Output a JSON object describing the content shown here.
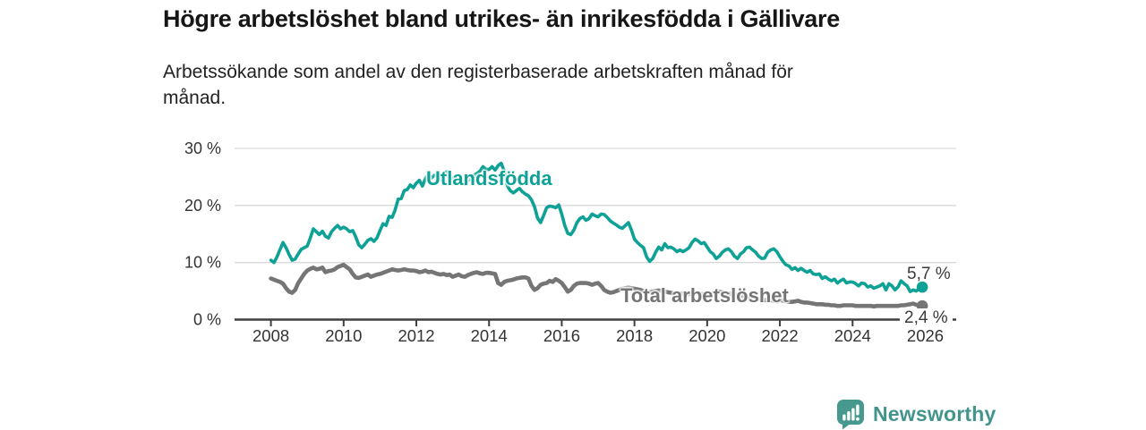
{
  "chart_data": {
    "type": "line",
    "title": "Högre arbetslöshet bland utrikes- än inrikesfödda i Gällivare",
    "subtitle": "Arbetssökande som andel av den registerbaserade arbetskraften månad för månad.",
    "xlabel": "",
    "ylabel": "",
    "xlim": [
      2007.0,
      2026.85
    ],
    "ylim": [
      0,
      30
    ],
    "grid": true,
    "legend_position": "inline-labels",
    "x_start_year": 2008,
    "x_step_months": 1,
    "x_ticks": [
      {
        "year": 2008,
        "label": "2008"
      },
      {
        "year": 2010,
        "label": "2010"
      },
      {
        "year": 2012,
        "label": "2012"
      },
      {
        "year": 2014,
        "label": "2014"
      },
      {
        "year": 2016,
        "label": "2016"
      },
      {
        "year": 2018,
        "label": "2018"
      },
      {
        "year": 2020,
        "label": "2020"
      },
      {
        "year": 2022,
        "label": "2022"
      },
      {
        "year": 2024,
        "label": "2024"
      },
      {
        "year": 2026,
        "label": "2026"
      }
    ],
    "y_ticks": [
      {
        "value": 0,
        "label": "0 %"
      },
      {
        "value": 10,
        "label": "10 %"
      },
      {
        "value": 20,
        "label": "20 %"
      },
      {
        "value": 30,
        "label": "30 %"
      }
    ],
    "series": [
      {
        "name": "Utlandsfödda",
        "color": "#0ea195",
        "end_label": "5,7 %",
        "end_value": 5.7,
        "values": [
          10.4,
          10.0,
          11.0,
          12.3,
          13.5,
          12.6,
          11.4,
          10.4,
          10.6,
          11.5,
          12.3,
          12.6,
          12.9,
          14.3,
          15.9,
          15.4,
          14.9,
          15.5,
          14.6,
          14.3,
          15.4,
          16.0,
          16.5,
          15.9,
          16.2,
          15.9,
          15.4,
          15.6,
          14.5,
          13.1,
          12.6,
          13.2,
          13.9,
          14.2,
          13.7,
          14.3,
          15.6,
          16.8,
          16.5,
          18.1,
          17.9,
          19.2,
          21.1,
          21.2,
          22.6,
          22.8,
          23.6,
          23.1,
          23.9,
          24.4,
          23.4,
          24.7,
          25.5,
          24.8,
          25.3,
          25.1,
          24.5,
          25.6,
          25.9,
          25.1,
          24.8,
          24.5,
          25.3,
          24.3,
          23.7,
          24.3,
          24.8,
          25.3,
          25.6,
          26.0,
          26.8,
          26.3,
          26.3,
          26.8,
          26.2,
          27.0,
          27.4,
          26.0,
          23.5,
          22.6,
          22.2,
          22.6,
          23.0,
          22.4,
          22.0,
          21.7,
          21.0,
          19.8,
          17.8,
          17.0,
          18.2,
          19.6,
          19.9,
          19.8,
          19.6,
          20.1,
          18.5,
          16.5,
          15.1,
          14.9,
          15.7,
          17.0,
          17.7,
          18.0,
          17.4,
          17.7,
          18.5,
          18.2,
          18.0,
          18.5,
          18.4,
          17.9,
          17.3,
          16.9,
          16.6,
          16.2,
          16.0,
          16.5,
          17.0,
          15.7,
          14.1,
          13.5,
          13.0,
          12.6,
          11.0,
          10.2,
          10.7,
          11.8,
          12.7,
          12.2,
          13.3,
          12.6,
          12.7,
          12.4,
          11.9,
          12.2,
          11.9,
          12.2,
          12.6,
          13.5,
          14.1,
          13.8,
          13.3,
          13.5,
          12.7,
          11.9,
          11.5,
          10.7,
          11.1,
          11.8,
          12.2,
          12.4,
          11.9,
          11.1,
          10.7,
          11.5,
          11.9,
          12.6,
          12.7,
          12.2,
          11.8,
          11.1,
          10.7,
          10.8,
          11.8,
          12.2,
          12.4,
          11.9,
          11.0,
          10.2,
          9.6,
          9.4,
          8.8,
          9.1,
          8.6,
          9.0,
          8.6,
          8.3,
          8.6,
          8.0,
          7.9,
          8.0,
          7.2,
          7.5,
          7.1,
          6.8,
          7.1,
          6.4,
          6.8,
          7.1,
          6.4,
          6.6,
          6.6,
          6.3,
          5.9,
          6.4,
          6.3,
          5.7,
          5.9,
          5.5,
          5.7,
          5.9,
          6.3,
          5.2,
          6.3,
          5.9,
          5.2,
          5.7,
          6.8,
          6.3,
          5.9,
          4.9,
          5.2,
          5.0,
          5.4,
          5.7
        ]
      },
      {
        "name": "Total arbetslöshet",
        "color": "#757575",
        "end_label": "2,4 %",
        "end_value": 2.4,
        "values": [
          7.2,
          7.0,
          6.8,
          6.6,
          6.3,
          5.5,
          4.9,
          4.7,
          5.2,
          6.4,
          7.2,
          8.0,
          8.6,
          8.9,
          9.1,
          8.8,
          8.9,
          9.1,
          8.3,
          8.5,
          8.6,
          8.8,
          9.2,
          9.4,
          9.6,
          9.2,
          8.8,
          8.0,
          7.4,
          7.3,
          7.5,
          7.7,
          7.9,
          7.5,
          7.7,
          7.9,
          8.0,
          8.2,
          8.4,
          8.6,
          8.8,
          8.7,
          8.6,
          8.7,
          8.8,
          8.7,
          8.6,
          8.6,
          8.5,
          8.3,
          8.4,
          8.6,
          8.3,
          8.4,
          8.2,
          8.0,
          7.9,
          8.0,
          7.8,
          7.9,
          7.5,
          7.7,
          7.9,
          7.6,
          7.5,
          7.8,
          8.0,
          8.2,
          8.3,
          8.1,
          8.0,
          8.2,
          8.2,
          8.1,
          8.0,
          6.4,
          6.1,
          6.6,
          6.8,
          6.9,
          7.0,
          7.2,
          7.3,
          7.4,
          7.4,
          7.2,
          5.9,
          5.2,
          5.5,
          6.1,
          6.3,
          6.4,
          6.8,
          6.6,
          7.1,
          6.8,
          6.4,
          5.7,
          4.9,
          5.2,
          5.9,
          6.3,
          6.4,
          6.4,
          6.4,
          6.3,
          6.1,
          6.3,
          6.4,
          5.9,
          5.2,
          4.9,
          4.7,
          4.8,
          5.0,
          5.2,
          5.4,
          5.5,
          5.6,
          5.5,
          5.4,
          5.3,
          5.2,
          5.0,
          4.9,
          4.8,
          4.9,
          5.0,
          5.1,
          5.0,
          4.9,
          4.8,
          4.7,
          4.6,
          4.5,
          4.6,
          4.5,
          4.4,
          4.5,
          4.6,
          4.7,
          4.6,
          4.5,
          4.4,
          4.5,
          4.4,
          4.6,
          4.8,
          4.9,
          4.8,
          4.7,
          4.6,
          4.5,
          4.4,
          4.3,
          4.2,
          4.1,
          4.0,
          3.9,
          3.8,
          3.7,
          3.6,
          3.5,
          3.4,
          3.5,
          3.4,
          3.3,
          3.2,
          3.4,
          3.3,
          3.2,
          3.1,
          3.1,
          3.2,
          3.3,
          3.1,
          3.0,
          3.0,
          2.9,
          2.8,
          2.7,
          2.7,
          2.7,
          2.6,
          2.6,
          2.5,
          2.5,
          2.4,
          2.4,
          2.5,
          2.5,
          2.5,
          2.5,
          2.4,
          2.4,
          2.4,
          2.4,
          2.4,
          2.4,
          2.3,
          2.4,
          2.4,
          2.4,
          2.4,
          2.4,
          2.4,
          2.4,
          2.4,
          2.5,
          2.5,
          2.6,
          2.7,
          2.8,
          2.6,
          2.5,
          2.4
        ]
      }
    ],
    "colors": {
      "teal": "#0ea195",
      "gray": "#757575",
      "axis": "#3f3f3f",
      "grid": "#d9d9d9",
      "tick_text": "#333333",
      "value_text": "#3a3a3a"
    }
  },
  "footer": {
    "brand": "Newsworthy",
    "brand_color": "#43948d"
  }
}
